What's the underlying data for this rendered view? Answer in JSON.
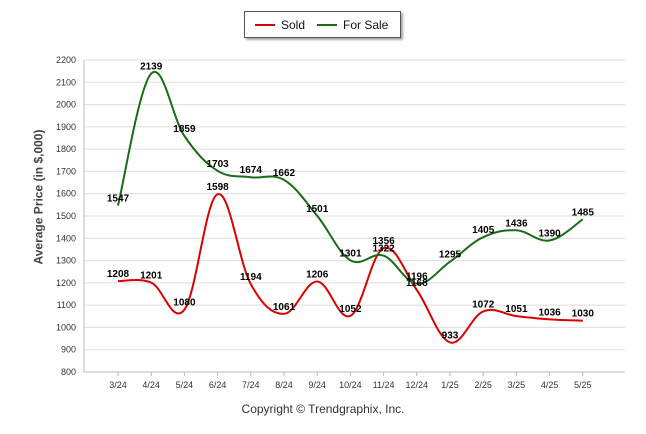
{
  "legend": {
    "sold_label": "Sold",
    "forsale_label": "For Sale"
  },
  "ylabel": "Average Price (in $,000)",
  "copyright": "Copyright © Trendgraphix, Inc.",
  "colors": {
    "sold": "#dd0000",
    "forsale": "#1a6b1a",
    "grid": "#dddddd"
  },
  "chart_data": {
    "type": "line",
    "categories": [
      "3/24",
      "4/24",
      "5/24",
      "6/24",
      "7/24",
      "8/24",
      "9/24",
      "10/24",
      "11/24",
      "12/24",
      "1/25",
      "2/25",
      "3/25",
      "4/25",
      "5/25"
    ],
    "series": [
      {
        "name": "Sold",
        "values": [
          1208,
          1201,
          1080,
          1598,
          1194,
          1061,
          1206,
          1052,
          1356,
          1168,
          933,
          1072,
          1051,
          1036,
          1030
        ]
      },
      {
        "name": "For Sale",
        "values": [
          1547,
          2139,
          1859,
          1703,
          1674,
          1662,
          1501,
          1301,
          1322,
          1196,
          1295,
          1405,
          1436,
          1390,
          1485
        ]
      }
    ],
    "ylabel": "Average Price (in $,000)",
    "ylim": [
      800,
      2200
    ],
    "yticks": [
      800,
      900,
      1000,
      1100,
      1200,
      1300,
      1400,
      1500,
      1600,
      1700,
      1800,
      1900,
      2000,
      2100,
      2200
    ],
    "grid": true,
    "legend_position": "top-center"
  }
}
